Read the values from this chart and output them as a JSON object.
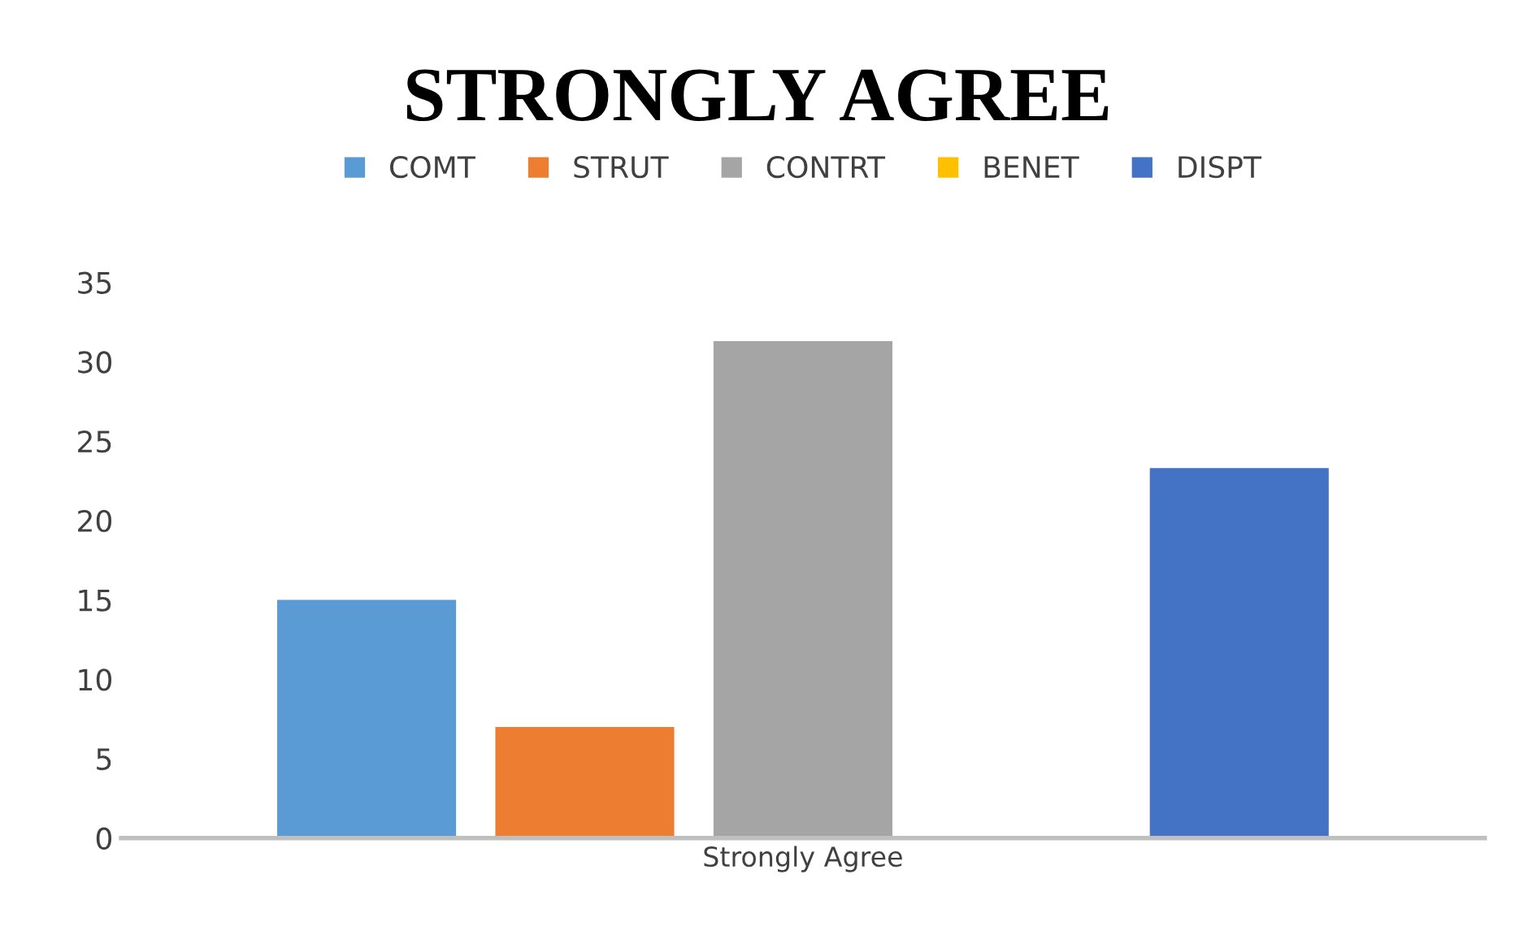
{
  "chart_data": {
    "type": "bar",
    "title": "STRONGLY AGREE",
    "categories": [
      "Strongly Agree"
    ],
    "series": [
      {
        "name": "COMT",
        "color": "#5b9bd5",
        "values": [
          15
        ]
      },
      {
        "name": "STRUT",
        "color": "#ed7d31",
        "values": [
          7
        ]
      },
      {
        "name": "CONTRT",
        "color": "#a5a5a5",
        "values": [
          31.3
        ]
      },
      {
        "name": "BENET",
        "color": "#ffc000",
        "values": [
          0
        ]
      },
      {
        "name": "DISPT",
        "color": "#4472c4",
        "values": [
          23.3
        ]
      }
    ],
    "ylim": [
      0,
      35
    ],
    "yticks": [
      0,
      5,
      10,
      15,
      20,
      25,
      30,
      35
    ],
    "grid": false,
    "legend": "top"
  }
}
